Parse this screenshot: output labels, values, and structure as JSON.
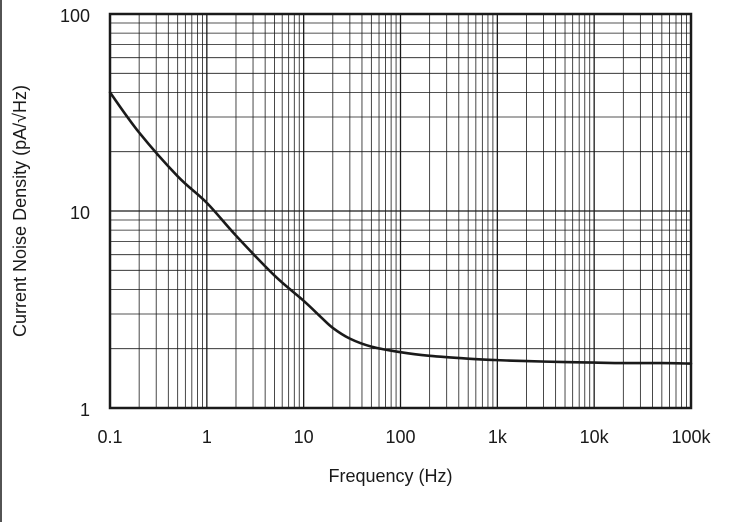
{
  "chart_data": {
    "type": "line",
    "scale": {
      "x": "log",
      "y": "log"
    },
    "xlim": [
      0.1,
      100000
    ],
    "ylim": [
      1,
      100
    ],
    "grid": true,
    "xlabel": "Frequency (Hz)",
    "ylabel": "Current Noise Density (pA/√Hz)",
    "x_tick_values": [
      0.1,
      1,
      10,
      100,
      1000,
      10000,
      100000
    ],
    "x_tick_labels": [
      "0.1",
      "1",
      "10",
      "100",
      "1k",
      "10k",
      "100k"
    ],
    "y_tick_values": [
      1,
      10,
      100
    ],
    "y_tick_labels": [
      "1",
      "10",
      "100"
    ],
    "series": [
      {
        "x": [
          0.1,
          0.2,
          0.5,
          1,
          2,
          5,
          10,
          15,
          20,
          30,
          50,
          100,
          200,
          500,
          1000,
          2000,
          5000,
          10000,
          20000,
          50000,
          100000
        ],
        "y": [
          40,
          25,
          15,
          11,
          7.5,
          4.7,
          3.5,
          2.9,
          2.55,
          2.25,
          2.05,
          1.92,
          1.84,
          1.78,
          1.75,
          1.73,
          1.71,
          1.7,
          1.69,
          1.69,
          1.68
        ]
      }
    ],
    "colors": {
      "line": "#1a1a1a",
      "grid": "#1a1a1a",
      "background": "#ffffff"
    }
  }
}
